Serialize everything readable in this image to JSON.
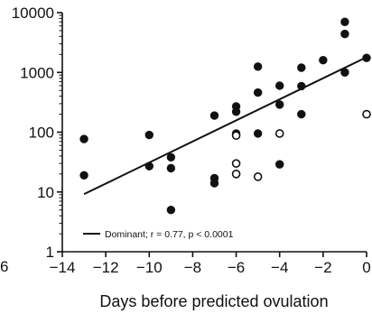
{
  "chart_data": {
    "type": "scatter",
    "xlabel": "Days before predicted ovulation",
    "ylabel": "",
    "x_scale": "linear",
    "y_scale": "log",
    "xlim": [
      -14,
      0
    ],
    "ylim": [
      1,
      10000
    ],
    "x_ticks": [
      -14,
      -12,
      -10,
      -8,
      -6,
      -4,
      -2,
      0
    ],
    "x_tick_labels": [
      "−14",
      "−12",
      "−10",
      "−8",
      "−6",
      "−4",
      "−2",
      "0"
    ],
    "y_ticks": [
      1,
      10,
      100,
      1000,
      10000
    ],
    "y_tick_labels": [
      "1",
      "10",
      "100",
      "1000",
      "10000"
    ],
    "partial_left_label": "6",
    "grid": false,
    "series": [
      {
        "marker": "filled-circle",
        "points": [
          {
            "x": -13,
            "y": 77
          },
          {
            "x": -13,
            "y": 19
          },
          {
            "x": -10,
            "y": 90
          },
          {
            "x": -10,
            "y": 27
          },
          {
            "x": -9,
            "y": 38
          },
          {
            "x": -9,
            "y": 25
          },
          {
            "x": -9,
            "y": 5
          },
          {
            "x": -7,
            "y": 190
          },
          {
            "x": -7,
            "y": 17
          },
          {
            "x": -7,
            "y": 14
          },
          {
            "x": -6,
            "y": 270
          },
          {
            "x": -6,
            "y": 220
          },
          {
            "x": -6,
            "y": 95
          },
          {
            "x": -5,
            "y": 1250
          },
          {
            "x": -5,
            "y": 460
          },
          {
            "x": -5,
            "y": 95
          },
          {
            "x": -4,
            "y": 600
          },
          {
            "x": -4,
            "y": 290
          },
          {
            "x": -4,
            "y": 29
          },
          {
            "x": -3,
            "y": 1200
          },
          {
            "x": -3,
            "y": 590
          },
          {
            "x": -3,
            "y": 200
          },
          {
            "x": -2,
            "y": 1600
          },
          {
            "x": -1,
            "y": 7000
          },
          {
            "x": -1,
            "y": 4400
          },
          {
            "x": -1,
            "y": 1000
          },
          {
            "x": 0,
            "y": 1750
          }
        ]
      },
      {
        "marker": "open-circle",
        "points": [
          {
            "x": -6,
            "y": 88
          },
          {
            "x": -6,
            "y": 30
          },
          {
            "x": -6,
            "y": 20
          },
          {
            "x": -5,
            "y": 18
          },
          {
            "x": -4,
            "y": 95
          },
          {
            "x": 0,
            "y": 200
          }
        ]
      }
    ],
    "regression_line": {
      "x": [
        -13,
        0
      ],
      "y": [
        9.2,
        1800
      ]
    },
    "legend": {
      "placement": "bottom-center",
      "entries": [
        {
          "label": "Dominant; r = 0.77, p < 0.0001",
          "marker": "line"
        }
      ]
    }
  }
}
